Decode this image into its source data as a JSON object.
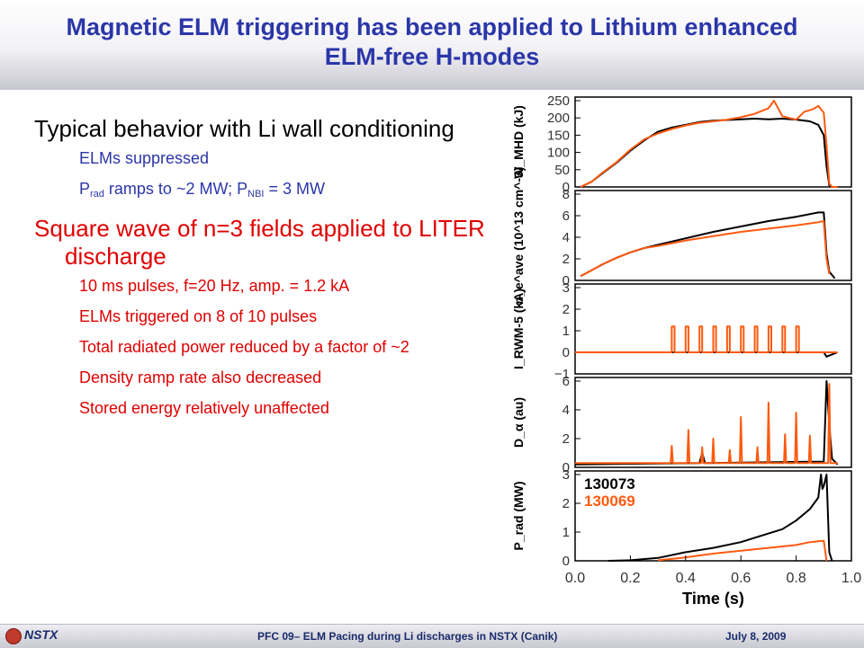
{
  "slide": {
    "title": "Magnetic ELM triggering has been applied to Lithium enhanced ELM-free H-modes",
    "bullet1": "Typical behavior with Li wall conditioning",
    "sub1a": "ELMs suppressed",
    "sub1b": {
      "p1": "P",
      "s1": "rad",
      "p2": " ramps to ~2 MW; P",
      "s2": "NBI",
      "p3": " = 3 MW"
    },
    "bullet2": "Square wave of n=3 fields applied to LITER discharge",
    "sub2": [
      "10 ms pulses, f=20 Hz, amp. = 1.2 kA",
      "ELMs triggered on 8 of 10 pulses",
      "Total radiated power reduced by a factor of ~2",
      "Density ramp rate also decreased",
      "Stored energy relatively unaffected"
    ]
  },
  "footer": {
    "logo": "NSTX",
    "center": "PFC 09– ELM Pacing during Li discharges in NSTX (Canik)",
    "date": "July 8, 2009"
  },
  "colors": {
    "title": "#2b36a8",
    "red_text": "#e00000",
    "shot_black": "#000000",
    "shot_orange": "#ff5a0f"
  },
  "chart_data": {
    "type": "line",
    "xlabel": "Time (s)",
    "x_ticks": [
      "0.0",
      "0.2",
      "0.4",
      "0.6",
      "0.8",
      "1.0"
    ],
    "xlim": [
      0.0,
      1.0
    ],
    "legend": {
      "placement": "top-left of bottom panel",
      "entries": [
        "130073",
        "130069"
      ]
    },
    "series_names": [
      "130073",
      "130069"
    ],
    "panels": [
      {
        "ylabel": "W_MHD (kJ)",
        "ylim": [
          0,
          250
        ],
        "ticks": [
          "0",
          "50",
          "100",
          "150",
          "200",
          "250"
        ],
        "series": [
          {
            "name": "130073",
            "x": [
              0.02,
              0.06,
              0.1,
              0.15,
              0.2,
              0.25,
              0.3,
              0.35,
              0.4,
              0.45,
              0.5,
              0.55,
              0.6,
              0.65,
              0.7,
              0.75,
              0.8,
              0.85,
              0.88,
              0.9,
              0.91,
              0.92,
              0.93,
              0.95
            ],
            "y": [
              0,
              15,
              40,
              70,
              105,
              135,
              160,
              172,
              180,
              188,
              192,
              194,
              196,
              198,
              196,
              198,
              195,
              190,
              180,
              150,
              60,
              5,
              0,
              0
            ]
          },
          {
            "name": "130069",
            "x": [
              0.02,
              0.06,
              0.1,
              0.15,
              0.2,
              0.25,
              0.3,
              0.35,
              0.4,
              0.45,
              0.5,
              0.55,
              0.6,
              0.65,
              0.7,
              0.72,
              0.75,
              0.8,
              0.83,
              0.86,
              0.88,
              0.9,
              0.91,
              0.92,
              0.93,
              0.95
            ],
            "y": [
              0,
              15,
              42,
              72,
              108,
              138,
              155,
              168,
              178,
              186,
              190,
              195,
              202,
              212,
              228,
              250,
              205,
              195,
              218,
              225,
              235,
              215,
              120,
              10,
              0,
              0
            ]
          }
        ]
      },
      {
        "ylabel": "n_e^ave (10^13 cm^-3)",
        "ylim": [
          0,
          8
        ],
        "ticks": [
          "0",
          "2",
          "4",
          "6",
          "8"
        ],
        "series": [
          {
            "name": "130073",
            "x": [
              0.02,
              0.05,
              0.1,
              0.15,
              0.2,
              0.25,
              0.3,
              0.4,
              0.5,
              0.6,
              0.7,
              0.8,
              0.88,
              0.9,
              0.91,
              0.92,
              0.94
            ],
            "y": [
              0.4,
              0.8,
              1.5,
              2.1,
              2.6,
              3.0,
              3.3,
              3.9,
              4.5,
              5.0,
              5.5,
              5.9,
              6.3,
              6.3,
              2.5,
              0.8,
              0.2
            ]
          },
          {
            "name": "130069",
            "x": [
              0.02,
              0.05,
              0.1,
              0.15,
              0.2,
              0.25,
              0.3,
              0.4,
              0.5,
              0.6,
              0.7,
              0.8,
              0.88,
              0.9,
              0.91,
              0.92
            ],
            "y": [
              0.4,
              0.8,
              1.5,
              2.1,
              2.6,
              3.0,
              3.2,
              3.7,
              4.1,
              4.5,
              4.8,
              5.1,
              5.4,
              5.5,
              2.0,
              0.6
            ]
          }
        ]
      },
      {
        "ylabel": "I_RWM-5 (kA)",
        "ylim": [
          -1,
          3
        ],
        "ticks": [
          "−1",
          "0",
          "1",
          "2",
          "3"
        ],
        "series": [
          {
            "name": "130073",
            "x": [
              0.0,
              0.9,
              0.91,
              0.95
            ],
            "y": [
              0,
              0,
              -0.2,
              0
            ]
          },
          {
            "name": "130069",
            "pulse_starts": [
              0.35,
              0.4,
              0.45,
              0.5,
              0.55,
              0.6,
              0.65,
              0.7,
              0.75,
              0.8
            ],
            "pulse_width": 0.01,
            "amplitude": 1.2
          }
        ]
      },
      {
        "ylabel": "D_α (au)",
        "ylim": [
          0,
          6
        ],
        "ticks": [
          "0",
          "2",
          "4",
          "6"
        ],
        "series": [
          {
            "name": "130073",
            "x": [
              0.0,
              0.45,
              0.46,
              0.47,
              0.9,
              0.91,
              0.92,
              0.93,
              0.95
            ],
            "y": [
              0.2,
              0.3,
              1.0,
              0.3,
              0.4,
              6.0,
              3.0,
              0.6,
              0.2
            ]
          },
          {
            "name": "130069",
            "base": 0.3,
            "spikes": [
              [
                0.35,
                1.5
              ],
              [
                0.41,
                2.6
              ],
              [
                0.46,
                1.4
              ],
              [
                0.5,
                2.0
              ],
              [
                0.56,
                1.2
              ],
              [
                0.6,
                3.5
              ],
              [
                0.66,
                1.4
              ],
              [
                0.7,
                4.5
              ],
              [
                0.76,
                2.3
              ],
              [
                0.8,
                3.8
              ],
              [
                0.85,
                2.2
              ],
              [
                0.92,
                5.8
              ]
            ]
          }
        ]
      },
      {
        "ylabel": "P_rad (MW)",
        "ylim": [
          0,
          3
        ],
        "ticks": [
          "0",
          "1",
          "2",
          "3"
        ],
        "series": [
          {
            "name": "130073",
            "x": [
              0.12,
              0.2,
              0.3,
              0.4,
              0.5,
              0.6,
              0.7,
              0.75,
              0.8,
              0.85,
              0.88,
              0.89,
              0.895,
              0.9,
              0.91,
              0.92,
              0.93
            ],
            "y": [
              0.0,
              0.02,
              0.1,
              0.3,
              0.45,
              0.65,
              0.95,
              1.1,
              1.4,
              1.8,
              2.2,
              3.0,
              2.5,
              2.6,
              3.0,
              0.3,
              0.0
            ]
          },
          {
            "name": "130069",
            "x": [
              0.3,
              0.4,
              0.5,
              0.6,
              0.7,
              0.8,
              0.85,
              0.9,
              0.91
            ],
            "y": [
              0.02,
              0.12,
              0.25,
              0.35,
              0.45,
              0.55,
              0.65,
              0.7,
              0.0
            ]
          }
        ]
      }
    ]
  }
}
